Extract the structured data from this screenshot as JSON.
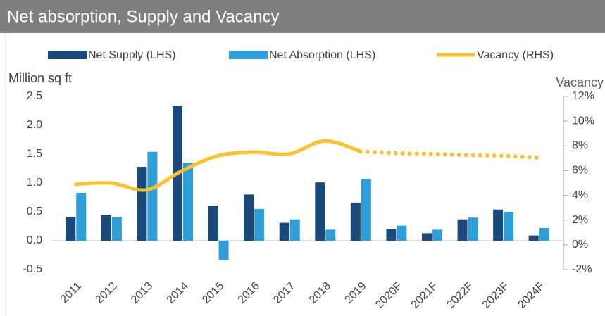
{
  "chart_data": {
    "type": "bar_line",
    "title": "Net absorption, Supply and Vacancy",
    "y_axis_label": "Million sq ft",
    "y2_axis_label": "Vacancy",
    "categories": [
      "2011",
      "2012",
      "2013",
      "2014",
      "2015",
      "2016",
      "2017",
      "2018",
      "2019",
      "2020F",
      "2021F",
      "2022F",
      "2023F",
      "2024F"
    ],
    "series": [
      {
        "name": "Net Supply (LHS)",
        "color": "#1b4a7a",
        "type": "bar",
        "values": [
          0.41,
          0.45,
          1.28,
          2.33,
          0.61,
          0.8,
          0.31,
          1.01,
          0.66,
          0.2,
          0.13,
          0.37,
          0.54,
          0.09
        ]
      },
      {
        "name": "Net Absorption (LHS)",
        "color": "#2e9fd8",
        "type": "bar",
        "values": [
          0.83,
          0.41,
          1.54,
          1.35,
          -0.33,
          0.55,
          0.37,
          0.19,
          1.07,
          0.26,
          0.19,
          0.4,
          0.5,
          0.22
        ]
      },
      {
        "name": "Vacancy (RHS)",
        "color": "#fcc22d",
        "type": "line",
        "axis": "y2",
        "values": [
          4.9,
          5.0,
          4.45,
          6.0,
          7.2,
          7.5,
          7.35,
          8.4,
          7.55,
          7.4,
          7.35,
          7.25,
          7.2,
          7.05
        ]
      }
    ],
    "ylim": [
      -0.5,
      2.5
    ],
    "yticks": [
      -0.5,
      {
        "value": 0,
        "label": "0.0"
      },
      0.5,
      {
        "value": 1,
        "label": "1.0"
      },
      1.5,
      {
        "value": 2,
        "label": "2.0"
      },
      2.5
    ],
    "y2lim": [
      -2,
      12
    ],
    "y2ticks": [
      {
        "value": -2,
        "label": "-2%"
      },
      {
        "value": 0,
        "label": "0%"
      },
      {
        "value": 2,
        "label": "2%"
      },
      {
        "value": 4,
        "label": "4%"
      },
      {
        "value": 6,
        "label": "6%"
      },
      {
        "value": 8,
        "label": "8%"
      },
      {
        "value": 10,
        "label": "10%"
      },
      {
        "value": 12,
        "label": "12%"
      }
    ],
    "legend": "top"
  }
}
